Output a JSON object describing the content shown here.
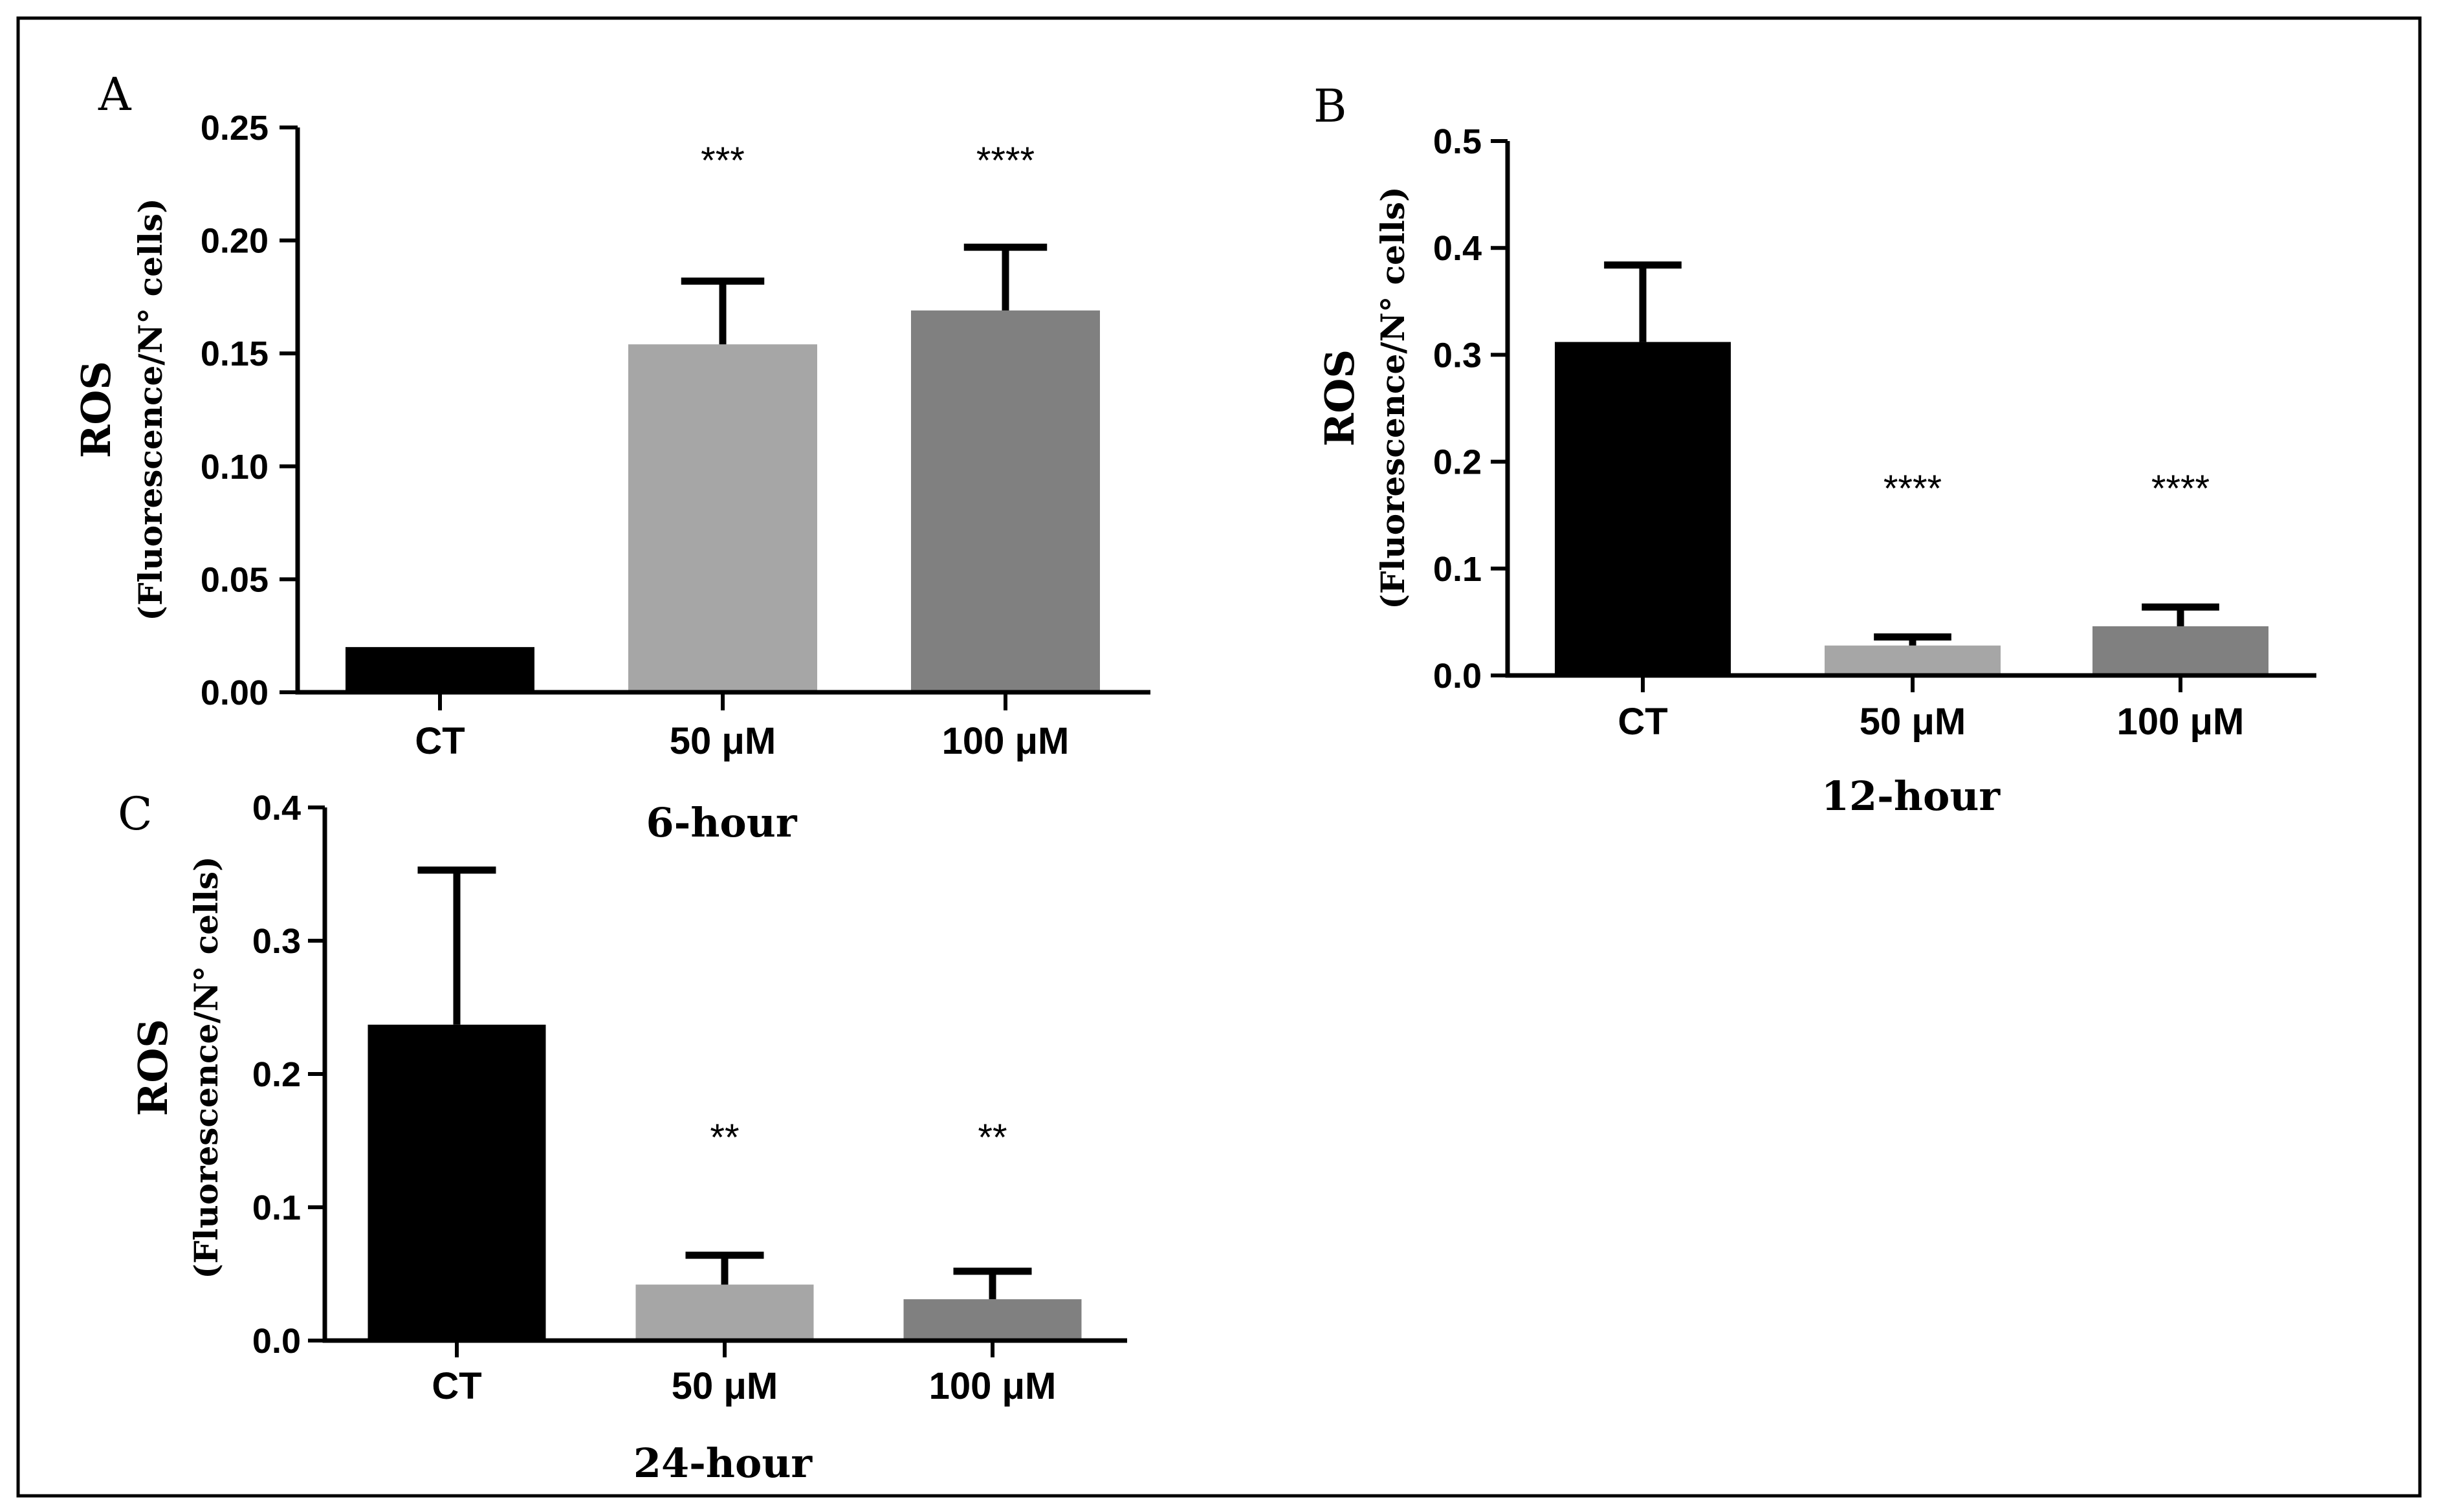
{
  "chart_data": [
    {
      "type": "bar",
      "panel": "A",
      "title": "6-hour",
      "ylabel": "ROS",
      "ylabel_sub": "(Fluorescence/N° cells)",
      "categories": [
        "CT",
        "50 μM",
        "100 μM"
      ],
      "values": [
        0.02,
        0.154,
        0.169
      ],
      "errors": [
        0.0,
        0.028,
        0.028
      ],
      "significance": [
        "",
        "***",
        "****"
      ],
      "colors": [
        "#000000",
        "#a6a6a6",
        "#808080"
      ],
      "ylim": [
        0,
        0.25
      ],
      "yticks": [
        "0.00",
        "0.05",
        "0.10",
        "0.15",
        "0.20",
        "0.25"
      ]
    },
    {
      "type": "bar",
      "panel": "B",
      "title": "12-hour",
      "ylabel": "ROS",
      "ylabel_sub": "(Fluorescence/N° cells)",
      "categories": [
        "CT",
        "50 μM",
        "100 μM"
      ],
      "values": [
        0.312,
        0.028,
        0.046
      ],
      "errors": [
        0.072,
        0.008,
        0.018
      ],
      "significance": [
        "",
        "****",
        "****"
      ],
      "colors": [
        "#000000",
        "#a6a6a6",
        "#808080"
      ],
      "ylim": [
        0,
        0.5
      ],
      "yticks": [
        "0.0",
        "0.1",
        "0.2",
        "0.3",
        "0.4",
        "0.5"
      ]
    },
    {
      "type": "bar",
      "panel": "C",
      "title": "24-hour",
      "ylabel": "ROS",
      "ylabel_sub": "(Fluorescence/N° cells)",
      "categories": [
        "CT",
        "50 μM",
        "100 μM"
      ],
      "values": [
        0.237,
        0.042,
        0.031
      ],
      "errors": [
        0.116,
        0.022,
        0.021
      ],
      "significance": [
        "",
        "**",
        "**"
      ],
      "colors": [
        "#000000",
        "#a6a6a6",
        "#808080"
      ],
      "ylim": [
        0,
        0.4
      ],
      "yticks": [
        "0.0",
        "0.1",
        "0.2",
        "0.3",
        "0.4"
      ]
    }
  ]
}
